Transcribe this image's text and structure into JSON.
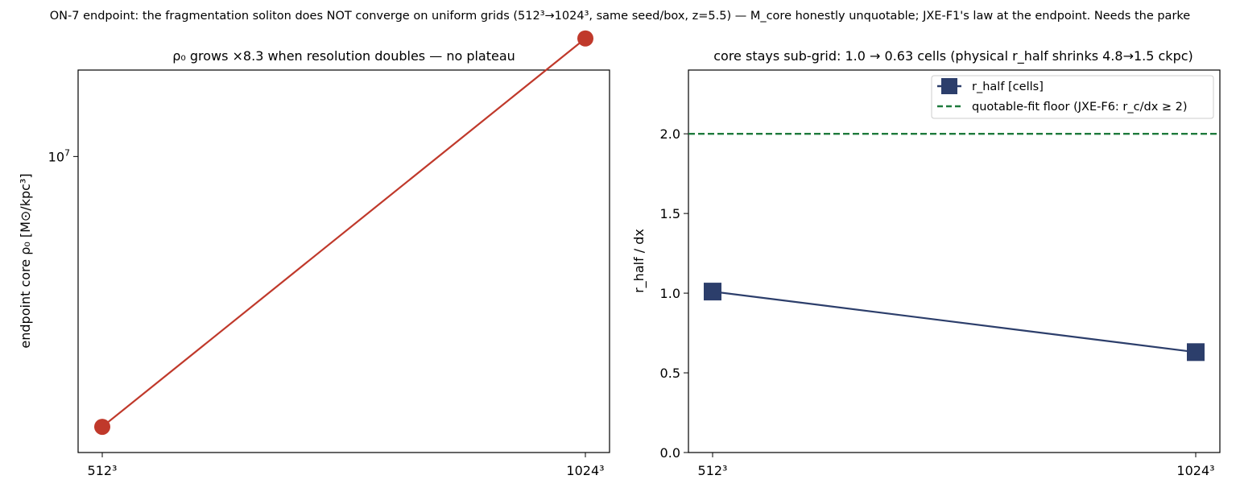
{
  "figure": {
    "suptitle": "ON-7 endpoint: the fragmentation soliton does NOT converge on uniform grids (512³→1024³, same seed/box, z=5.5) — M_core honestly unquotable; JXE-F1's law at the endpoint. Needs the parke"
  },
  "chart_data": [
    {
      "type": "line",
      "title": "ρ₀ grows ×8.3 when resolution doubles — no plateau",
      "xlabel": "",
      "ylabel": "endpoint core ρ₀ [M⊙/kpc³]",
      "yscale": "log",
      "categories": [
        "512³",
        "1024³"
      ],
      "series": [
        {
          "name": "",
          "values": [
            2300000.0,
            19000000.0
          ],
          "color": "#c0392b",
          "marker": "circle"
        }
      ],
      "ylim": [
        2000000.0,
        16000000.0
      ],
      "yticks": [
        {
          "value": 10000000.0,
          "label": "10^7"
        }
      ],
      "grid": false,
      "legend": "none"
    },
    {
      "type": "line",
      "title": "core stays sub-grid: 1.0 → 0.63 cells (physical r_half shrinks 4.8→1.5 ckpc)",
      "xlabel": "",
      "ylabel": "r_half / dx",
      "categories": [
        "512³",
        "1024³"
      ],
      "series": [
        {
          "name": "r_half [cells]",
          "values": [
            1.01,
            0.63
          ],
          "color": "#2c3e6b",
          "marker": "square"
        }
      ],
      "reference_lines": [
        {
          "name": "quotable-fit floor (JXE-F6: r_c/dx ≥ 2)",
          "y": 2.0,
          "color": "#1e7a3c",
          "style": "dashed"
        }
      ],
      "ylim": [
        0,
        2.4
      ],
      "yticks": [
        {
          "value": 0,
          "label": "0.0"
        },
        {
          "value": 0.5,
          "label": "0.5"
        },
        {
          "value": 1.0,
          "label": "1.0"
        },
        {
          "value": 1.5,
          "label": "1.5"
        },
        {
          "value": 2.0,
          "label": "2.0"
        }
      ],
      "grid": false,
      "legend": "top-right"
    }
  ]
}
